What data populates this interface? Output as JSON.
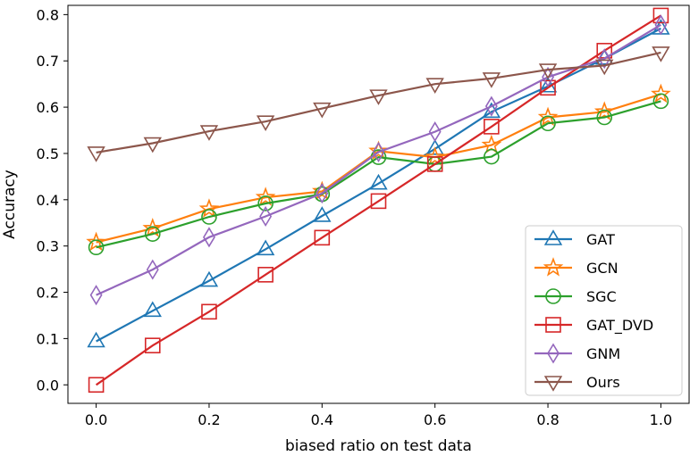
{
  "chart_data": {
    "type": "line",
    "xlabel": "biased ratio on test data",
    "ylabel": "Accuracy",
    "xlim": [
      -0.05,
      1.05
    ],
    "ylim": [
      -0.04,
      0.82
    ],
    "xticks": [
      0.0,
      0.2,
      0.4,
      0.6,
      0.8,
      1.0
    ],
    "xtick_labels": [
      "0.0",
      "0.2",
      "0.4",
      "0.6",
      "0.8",
      "1.0"
    ],
    "yticks": [
      0.0,
      0.1,
      0.2,
      0.3,
      0.4,
      0.5,
      0.6,
      0.7,
      0.8
    ],
    "ytick_labels": [
      "0.0",
      "0.1",
      "0.2",
      "0.3",
      "0.4",
      "0.5",
      "0.6",
      "0.7",
      "0.8"
    ],
    "grid": false,
    "legend_position": "bottom-right",
    "x": [
      0.0,
      0.1,
      0.2,
      0.3,
      0.4,
      0.5,
      0.6,
      0.7,
      0.8,
      0.9,
      1.0
    ],
    "series": [
      {
        "name": "GAT",
        "color": "#1f77b4",
        "marker": "triangle-up",
        "values": [
          0.094,
          0.16,
          0.225,
          0.293,
          0.365,
          0.435,
          0.51,
          0.59,
          0.645,
          0.705,
          0.77
        ]
      },
      {
        "name": "GCN",
        "color": "#ff7f0e",
        "marker": "star",
        "values": [
          0.308,
          0.338,
          0.38,
          0.405,
          0.418,
          0.505,
          0.492,
          0.518,
          0.578,
          0.59,
          0.628
        ]
      },
      {
        "name": "SGC",
        "color": "#2ca02c",
        "marker": "circle",
        "values": [
          0.297,
          0.326,
          0.363,
          0.392,
          0.412,
          0.492,
          0.477,
          0.493,
          0.565,
          0.578,
          0.613
        ]
      },
      {
        "name": "GAT_DVD",
        "color": "#d62728",
        "marker": "square",
        "values": [
          0.0,
          0.085,
          0.158,
          0.238,
          0.318,
          0.397,
          0.477,
          0.558,
          0.642,
          0.722,
          0.798
        ]
      },
      {
        "name": "GNM",
        "color": "#9467bd",
        "marker": "diamond",
        "values": [
          0.194,
          0.249,
          0.319,
          0.364,
          0.414,
          0.503,
          0.547,
          0.602,
          0.665,
          0.705,
          0.778
        ]
      },
      {
        "name": "Ours",
        "color": "#8c564b",
        "marker": "triangle-down",
        "values": [
          0.502,
          0.522,
          0.548,
          0.569,
          0.597,
          0.625,
          0.65,
          0.662,
          0.681,
          0.69,
          0.718
        ]
      }
    ]
  }
}
